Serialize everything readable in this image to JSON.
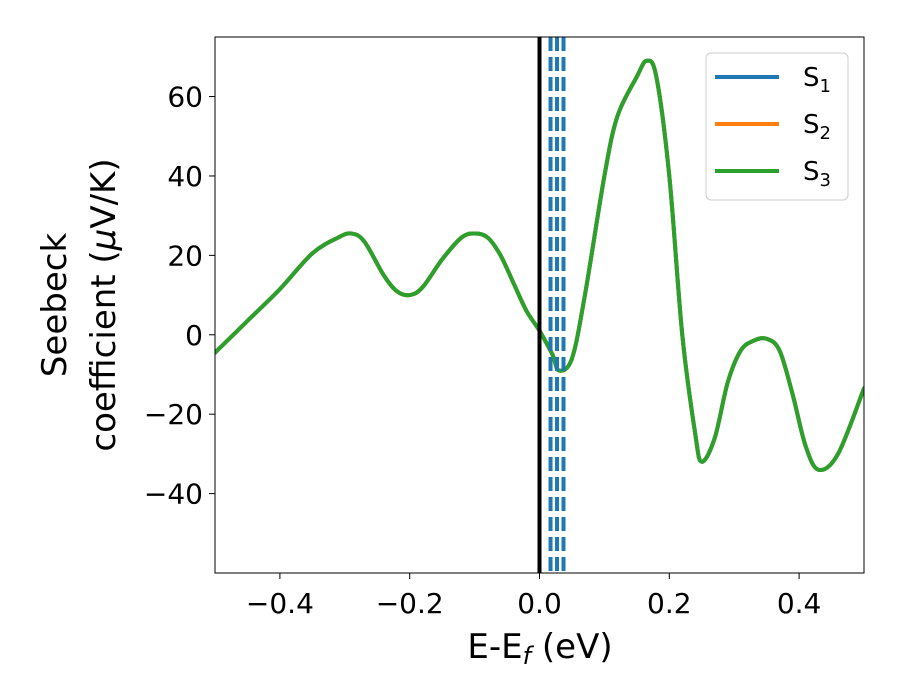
{
  "chart_data": {
    "type": "line",
    "xlabel": {
      "main": "E-E",
      "sub": "f",
      "suffix": " (eV)"
    },
    "ylabel": {
      "line1": "Seebeck",
      "line2_pre": "coefficient  (",
      "mu": "μ",
      "line2_post": "V/K)"
    },
    "xlim": [
      -0.5,
      0.5
    ],
    "ylim": [
      -60,
      75
    ],
    "xticks": [
      -0.4,
      -0.2,
      0.0,
      0.2,
      0.4
    ],
    "xtick_labels": [
      "−0.4",
      "−0.2",
      "0.0",
      "0.2",
      "0.4"
    ],
    "yticks": [
      -40,
      -20,
      0,
      20,
      40,
      60
    ],
    "ytick_labels": [
      "−40",
      "−20",
      "0",
      "20",
      "40",
      "60"
    ],
    "fermi_line": {
      "x": 0.0,
      "color": "#000000"
    },
    "dashed_lines": {
      "x": [
        0.017,
        0.027,
        0.037
      ],
      "color": "#1f77b4"
    },
    "legend": {
      "placement": "top-right"
    },
    "series": [
      {
        "name_main": "S",
        "name_sub": "1",
        "color": "#1f77b4",
        "x": [
          -0.5,
          -0.45,
          -0.4,
          -0.35,
          -0.31,
          -0.29,
          -0.27,
          -0.24,
          -0.22,
          -0.2,
          -0.18,
          -0.15,
          -0.12,
          -0.1,
          -0.08,
          -0.06,
          -0.04,
          -0.02,
          0.0,
          0.02,
          0.03,
          0.05,
          0.07,
          0.1,
          0.12,
          0.15,
          0.165,
          0.18,
          0.2,
          0.22,
          0.24,
          0.25,
          0.27,
          0.29,
          0.31,
          0.33,
          0.35,
          0.37,
          0.39,
          0.41,
          0.43,
          0.46,
          0.5
        ],
        "y": [
          -4.5,
          3.5,
          11.5,
          20.5,
          24.5,
          25.5,
          23.5,
          15,
          11,
          10,
          12,
          19,
          24.5,
          25.5,
          24.5,
          20,
          13,
          6,
          1,
          -5,
          -9,
          -6,
          10,
          40,
          55,
          65,
          69,
          65,
          40,
          0,
          -25,
          -32,
          -26,
          -12,
          -4,
          -1.5,
          -1,
          -4,
          -15,
          -28,
          -34,
          -30,
          -13.5
        ]
      },
      {
        "name_main": "S",
        "name_sub": "2",
        "color": "#ff7f0e",
        "x": [
          -0.5,
          -0.45,
          -0.4,
          -0.35,
          -0.31,
          -0.29,
          -0.27,
          -0.24,
          -0.22,
          -0.2,
          -0.18,
          -0.15,
          -0.12,
          -0.1,
          -0.08,
          -0.06,
          -0.04,
          -0.02,
          0.0,
          0.02,
          0.03,
          0.05,
          0.07,
          0.1,
          0.12,
          0.15,
          0.165,
          0.18,
          0.2,
          0.22,
          0.24,
          0.25,
          0.27,
          0.29,
          0.31,
          0.33,
          0.35,
          0.37,
          0.39,
          0.41,
          0.43,
          0.46,
          0.5
        ],
        "y": [
          -4.5,
          3.5,
          11.5,
          20.5,
          24.5,
          25.5,
          23.5,
          15,
          11,
          10,
          12,
          19,
          24.5,
          25.5,
          24.5,
          20,
          13,
          6,
          1,
          -5,
          -9,
          -6,
          10,
          40,
          55,
          65,
          69,
          65,
          40,
          0,
          -25,
          -32,
          -26,
          -12,
          -4,
          -1.5,
          -1,
          -4,
          -15,
          -28,
          -34,
          -30,
          -13.5
        ]
      },
      {
        "name_main": "S",
        "name_sub": "3",
        "color": "#2ca02c",
        "x": [
          -0.5,
          -0.45,
          -0.4,
          -0.35,
          -0.31,
          -0.29,
          -0.27,
          -0.24,
          -0.22,
          -0.2,
          -0.18,
          -0.15,
          -0.12,
          -0.1,
          -0.08,
          -0.06,
          -0.04,
          -0.02,
          0.0,
          0.02,
          0.03,
          0.05,
          0.07,
          0.1,
          0.12,
          0.15,
          0.165,
          0.18,
          0.2,
          0.22,
          0.24,
          0.25,
          0.27,
          0.29,
          0.31,
          0.33,
          0.35,
          0.37,
          0.39,
          0.41,
          0.43,
          0.46,
          0.5
        ],
        "y": [
          -4.5,
          3.5,
          11.5,
          20.5,
          24.5,
          25.5,
          23.5,
          15,
          11,
          10,
          12,
          19,
          24.5,
          25.5,
          24.5,
          20,
          13,
          6,
          1,
          -5,
          -9,
          -6,
          10,
          40,
          55,
          65,
          69,
          65,
          40,
          0,
          -25,
          -32,
          -26,
          -12,
          -4,
          -1.5,
          -1,
          -4,
          -15,
          -28,
          -34,
          -30,
          -13.5
        ]
      }
    ]
  }
}
